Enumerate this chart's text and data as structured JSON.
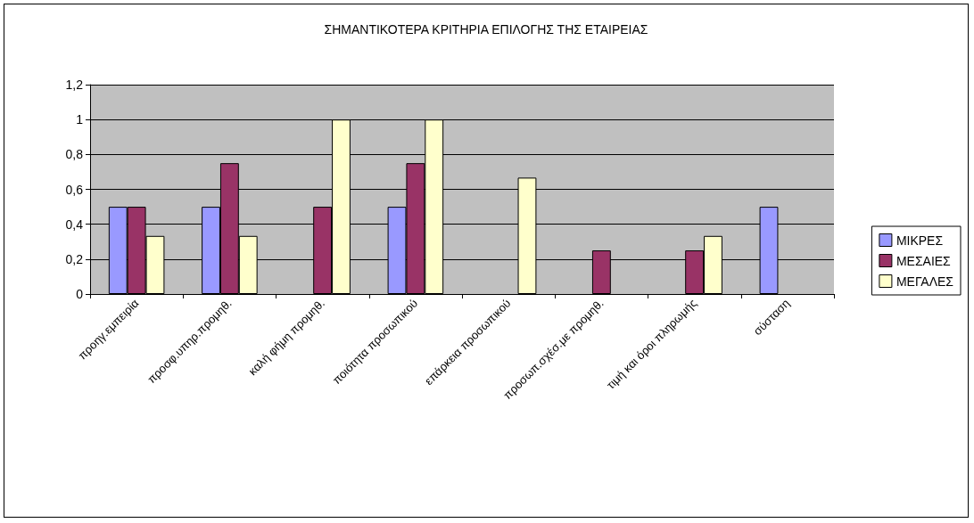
{
  "chart_data": {
    "type": "bar",
    "title": "ΣΗΜΑΝΤΙΚΟΤΕΡΑ ΚΡΙΤΗΡΙΑ ΕΠΙΛΟΓΗΣ ΤΗΣ ΕΤΑΙΡΕΙΑΣ",
    "categories": [
      "προηγ.εμπειρία",
      "προσφ.υπηρ.προμηθ.",
      "καλή φήμη προμηθ.",
      "ποιότητα προσωπικού",
      "επάρκεια προσωπικού",
      "προσωπ.σχέσ.με προμηθ.",
      "τιμή και όροι πληρωμής",
      "σύσταση"
    ],
    "series": [
      {
        "name": "ΜΙΚΡΕΣ",
        "color": "#9999ff",
        "values": [
          0.5,
          0.5,
          null,
          0.5,
          null,
          null,
          null,
          0.5
        ]
      },
      {
        "name": "ΜΕΣΑΙΕΣ",
        "color": "#993366",
        "values": [
          0.5,
          0.75,
          0.5,
          0.75,
          null,
          0.25,
          0.25,
          null
        ]
      },
      {
        "name": "ΜΕΓΑΛΕΣ",
        "color": "#ffffcc",
        "values": [
          0.333,
          0.333,
          1,
          1,
          0.667,
          null,
          0.333,
          null
        ]
      }
    ],
    "ylim": [
      0,
      1.2
    ],
    "yticks": [
      0,
      {
        "value": 0.2,
        "label": "0,2"
      },
      {
        "value": 0.4,
        "label": "0,4"
      },
      {
        "value": 0.6,
        "label": "0,6"
      },
      {
        "value": 0.8,
        "label": "0,8"
      },
      1,
      {
        "value": 1.2,
        "label": "1,2"
      }
    ],
    "grid": "y",
    "legend": "right"
  }
}
